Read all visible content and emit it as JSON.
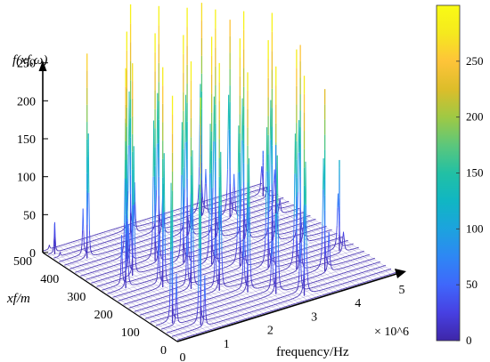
{
  "chart_data": {
    "type": "3d-line-waterfall",
    "zlabel": "f(xf,ω)",
    "ylabel": "xf/m",
    "xlabel": "frequency/Hz",
    "x_exponent": "× 10^6",
    "x_ticks": [
      "0",
      "1",
      "2",
      "3",
      "4",
      "5"
    ],
    "y_ticks": [
      "0",
      "100",
      "200",
      "300",
      "400",
      "500"
    ],
    "z_ticks": [
      "0",
      "50",
      "100",
      "150",
      "200",
      "250"
    ],
    "xlim": [
      0,
      5
    ],
    "ylim": [
      0,
      500
    ],
    "zlim": [
      0,
      300
    ],
    "colorbar": {
      "ticks": [
        "0",
        "50",
        "100",
        "150",
        "200",
        "250"
      ],
      "range": [
        0,
        300
      ],
      "colormap": "parula",
      "colors": [
        "#3e26a8",
        "#4740e2",
        "#3f67fb",
        "#2e87f4",
        "#1ca3de",
        "#10b6c3",
        "#22c0a4",
        "#5cc77b",
        "#9fc944",
        "#dcbd2a",
        "#fec439",
        "#f5e91e",
        "#f9fb14"
      ]
    },
    "num_slices": 26,
    "resonance_peaks": [
      {
        "x": 0.35,
        "y": 75,
        "z": 300
      },
      {
        "x": 0.75,
        "y": 35,
        "z": 300
      },
      {
        "x": 1.05,
        "y": 225,
        "z": 290
      },
      {
        "x": 1.45,
        "y": 185,
        "z": 300
      },
      {
        "x": 1.85,
        "y": 145,
        "z": 300
      },
      {
        "x": 2.25,
        "y": 105,
        "z": 290
      },
      {
        "x": 2.65,
        "y": 65,
        "z": 300
      },
      {
        "x": 3.05,
        "y": 25,
        "z": 290
      },
      {
        "x": 1.15,
        "y": 375,
        "z": 300
      },
      {
        "x": 1.55,
        "y": 335,
        "z": 300
      },
      {
        "x": 1.95,
        "y": 295,
        "z": 300
      },
      {
        "x": 2.35,
        "y": 255,
        "z": 300
      },
      {
        "x": 2.75,
        "y": 215,
        "z": 300
      },
      {
        "x": 3.15,
        "y": 175,
        "z": 300
      },
      {
        "x": 3.55,
        "y": 135,
        "z": 290
      },
      {
        "x": 3.95,
        "y": 95,
        "z": 240
      },
      {
        "x": 1.85,
        "y": 475,
        "z": 300
      },
      {
        "x": 2.25,
        "y": 435,
        "z": 300
      },
      {
        "x": 2.65,
        "y": 395,
        "z": 300
      },
      {
        "x": 3.05,
        "y": 355,
        "z": 300
      },
      {
        "x": 3.45,
        "y": 315,
        "z": 300
      },
      {
        "x": 3.85,
        "y": 275,
        "z": 300
      },
      {
        "x": 4.25,
        "y": 235,
        "z": 260
      },
      {
        "x": 0.45,
        "y": 265,
        "z": 290
      },
      {
        "x": 0.85,
        "y": 305,
        "z": 280
      },
      {
        "x": 0.55,
        "y": 425,
        "z": 270
      },
      {
        "x": 3.35,
        "y": 455,
        "z": 280
      },
      {
        "x": 3.75,
        "y": 415,
        "z": 260
      },
      {
        "x": 4.55,
        "y": 375,
        "z": 90
      },
      {
        "x": 4.75,
        "y": 455,
        "z": 60
      },
      {
        "x": 4.65,
        "y": 155,
        "z": 120
      },
      {
        "x": 0.15,
        "y": 480,
        "z": 40
      }
    ]
  }
}
